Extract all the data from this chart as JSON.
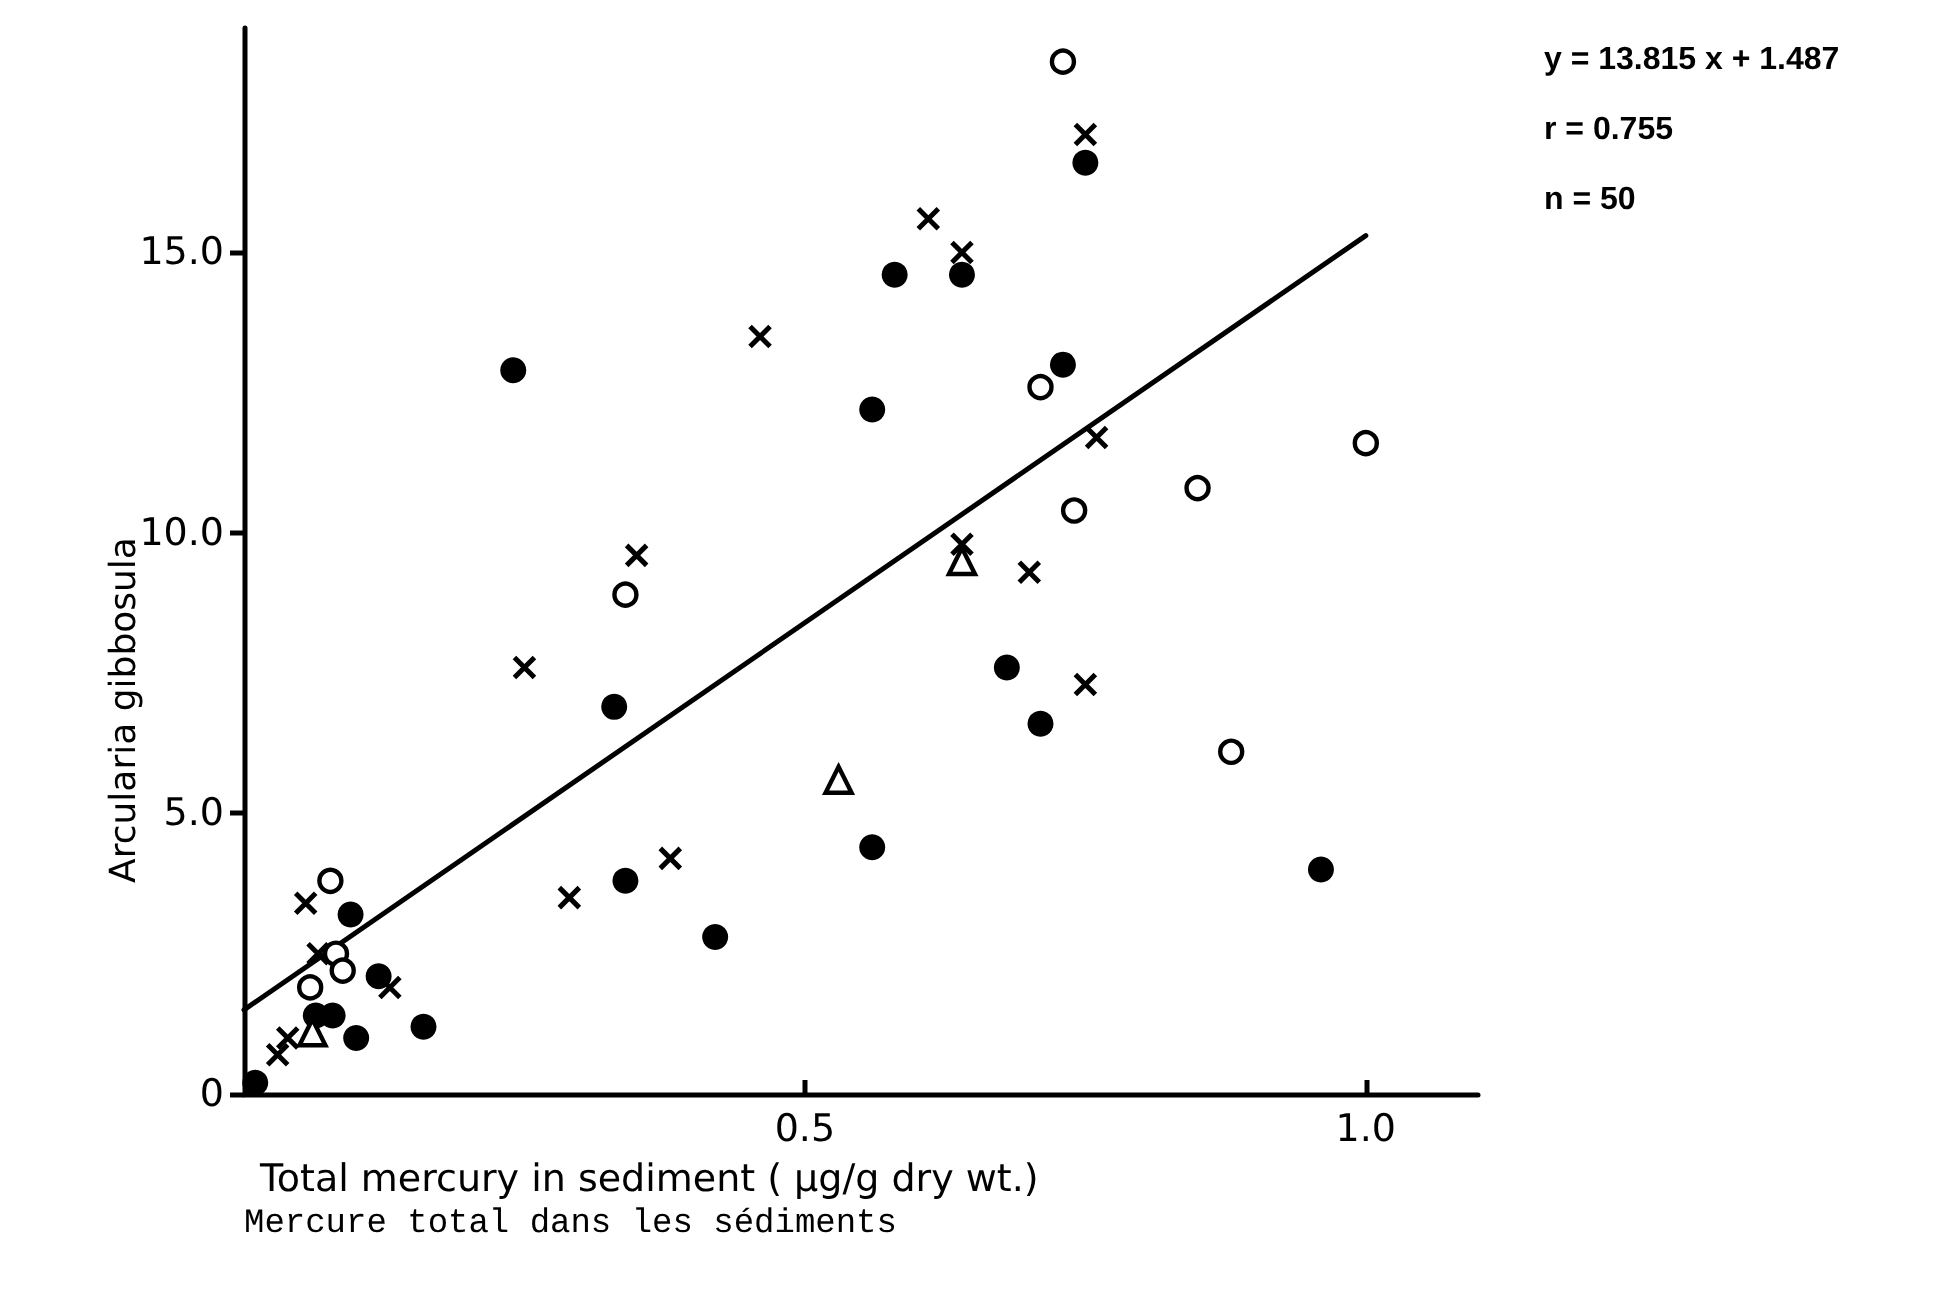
{
  "chart_data": {
    "type": "scatter",
    "xlabel": "Total mercury in sediment ( µg/g dry wt.)\nMercure total dans les sédiments",
    "ylabel": "Arcularia gibbosula",
    "annotations": [
      "y = 13.815 x + 1.487",
      "r = 0.755",
      "n = 50"
    ],
    "xlim": [
      0,
      1.1
    ],
    "xticks": [
      0.5,
      {
        "value": 1,
        "label": "1.0"
      }
    ],
    "ylim": [
      0,
      19
    ],
    "yticks": [
      0,
      {
        "value": 5,
        "label": "5.0"
      },
      {
        "value": 10,
        "label": "10.0"
      },
      {
        "value": 15,
        "label": "15.0"
      }
    ],
    "series": [
      {
        "marker": "circle",
        "color": "#000000",
        "x": [
          0.24,
          0.58,
          0.64,
          0.56,
          0.75,
          0.73,
          0.68,
          0.71,
          0.96,
          0.33,
          0.56,
          0.34,
          0.42,
          0.095,
          0.12,
          0.064,
          0.079,
          0.1,
          0.16,
          0.01
        ],
        "values": [
          12.9,
          14.6,
          14.6,
          12.2,
          16.6,
          13.0,
          7.6,
          6.6,
          4.0,
          6.9,
          4.4,
          3.8,
          2.8,
          3.2,
          2.1,
          1.4,
          1.4,
          1.0,
          1.2,
          0.2
        ]
      },
      {
        "marker": "circle-open",
        "color": "#000000",
        "x": [
          0.73,
          0.71,
          1.0,
          0.85,
          0.74,
          0.88,
          0.34,
          0.077,
          0.082,
          0.088,
          0.059
        ],
        "values": [
          18.4,
          12.6,
          11.6,
          10.8,
          10.4,
          6.1,
          8.9,
          3.8,
          2.5,
          2.2,
          1.9
        ]
      },
      {
        "marker": "cross",
        "color": "#000000",
        "x": [
          0.61,
          0.64,
          0.46,
          0.75,
          0.76,
          0.7,
          0.64,
          0.35,
          0.25,
          0.75,
          0.38,
          0.29,
          0.055,
          0.066,
          0.13,
          0.039,
          0.03
        ],
        "values": [
          15.6,
          15.0,
          13.5,
          17.1,
          11.7,
          9.3,
          9.8,
          9.6,
          7.6,
          7.3,
          4.2,
          3.5,
          3.4,
          2.5,
          1.9,
          1.0,
          0.7
        ]
      },
      {
        "marker": "triangle-open",
        "color": "#000000",
        "x": [
          0.64,
          0.53,
          0.061
        ],
        "values": [
          9.5,
          5.6,
          1.1
        ]
      },
      {
        "type": "line",
        "marker": "none",
        "line_style": "solid",
        "color": "#000000",
        "x": [
          0,
          1.0
        ],
        "values": [
          1.5,
          15.3
        ]
      }
    ]
  }
}
